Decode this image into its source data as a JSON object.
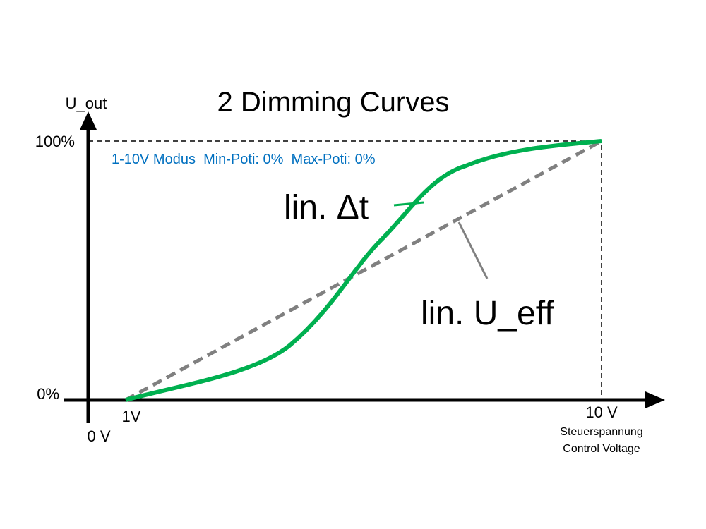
{
  "axis": {
    "y_label": "U_out",
    "y_top": "100%",
    "y_bottom": "0%",
    "x_start": "1V",
    "origin": "0 V",
    "x_end": "10 V",
    "x_label_de": "Steuerspannung",
    "x_label_en": "Control Voltage"
  },
  "title": "2 Dimming Curves",
  "subtitle": "1-10V Modus  Min-Poti: 0%  Max-Poti: 0%",
  "curves": [
    {
      "label": "lin. Δt"
    },
    {
      "label": "lin. U_eff"
    }
  ]
}
